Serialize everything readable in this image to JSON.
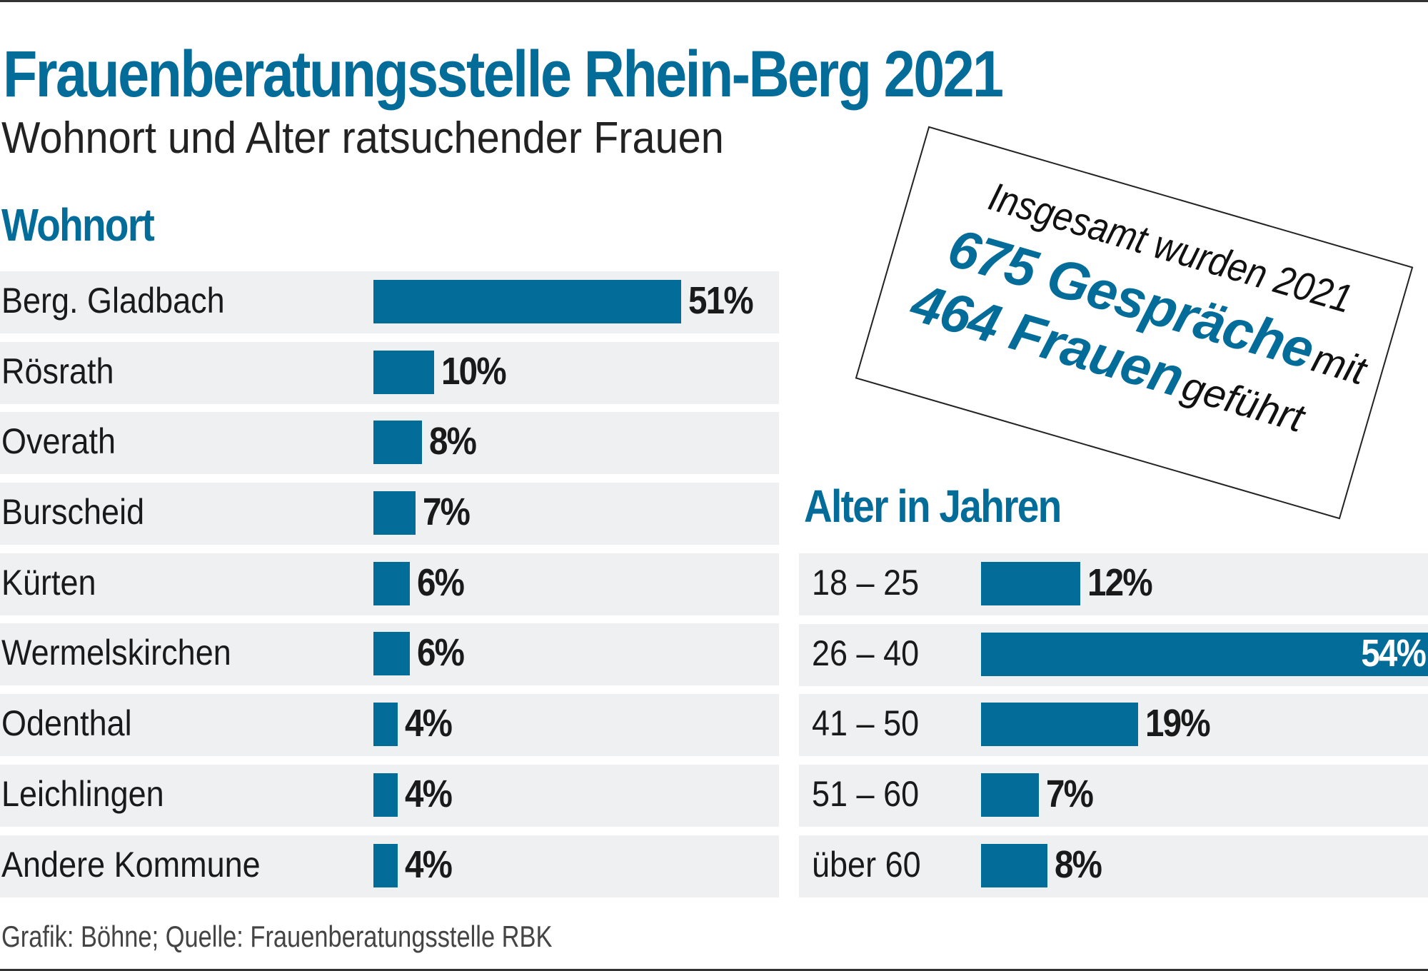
{
  "title": "Frauenberatungsstelle Rhein-Berg 2021",
  "subtitle": "Wohnort und Alter ratsuchender Frauen",
  "colors": {
    "accent": "#036c99",
    "row_bg": "#eff0f2",
    "text": "#1a1a1a"
  },
  "info_box": {
    "line1": "Insgesamt wurden 2021",
    "line2_strong": "675 Gespräche",
    "line2_normal": "mit",
    "line3_strong": "464 Frauen",
    "line3_normal": "geführt"
  },
  "footer": "Grafik: Böhne; Quelle: Frauenberatungsstelle RBK",
  "chart_data": [
    {
      "type": "bar",
      "orientation": "horizontal",
      "title": "Wohnort",
      "categories": [
        "Berg. Gladbach",
        "Rösrath",
        "Overath",
        "Burscheid",
        "Kürten",
        "Wermelskirchen",
        "Odenthal",
        "Leichlingen",
        "Andere Kommune"
      ],
      "values": [
        51,
        10,
        8,
        7,
        6,
        6,
        4,
        4,
        4
      ],
      "labels": [
        "51%",
        "10%",
        "8%",
        "7%",
        "6%",
        "6%",
        "4%",
        "4%",
        "4%"
      ],
      "unit": "%",
      "xlabel": "",
      "ylabel": "",
      "grid": false
    },
    {
      "type": "bar",
      "orientation": "horizontal",
      "title": "Alter in Jahren",
      "categories": [
        "18 – 25",
        "26 – 40",
        "41 – 50",
        "51 – 60",
        "über 60"
      ],
      "values": [
        12,
        54,
        19,
        7,
        8
      ],
      "labels": [
        "12%",
        "54%",
        "19%",
        "7%",
        "8%"
      ],
      "unit": "%",
      "xlabel": "",
      "ylabel": "",
      "grid": false
    }
  ]
}
